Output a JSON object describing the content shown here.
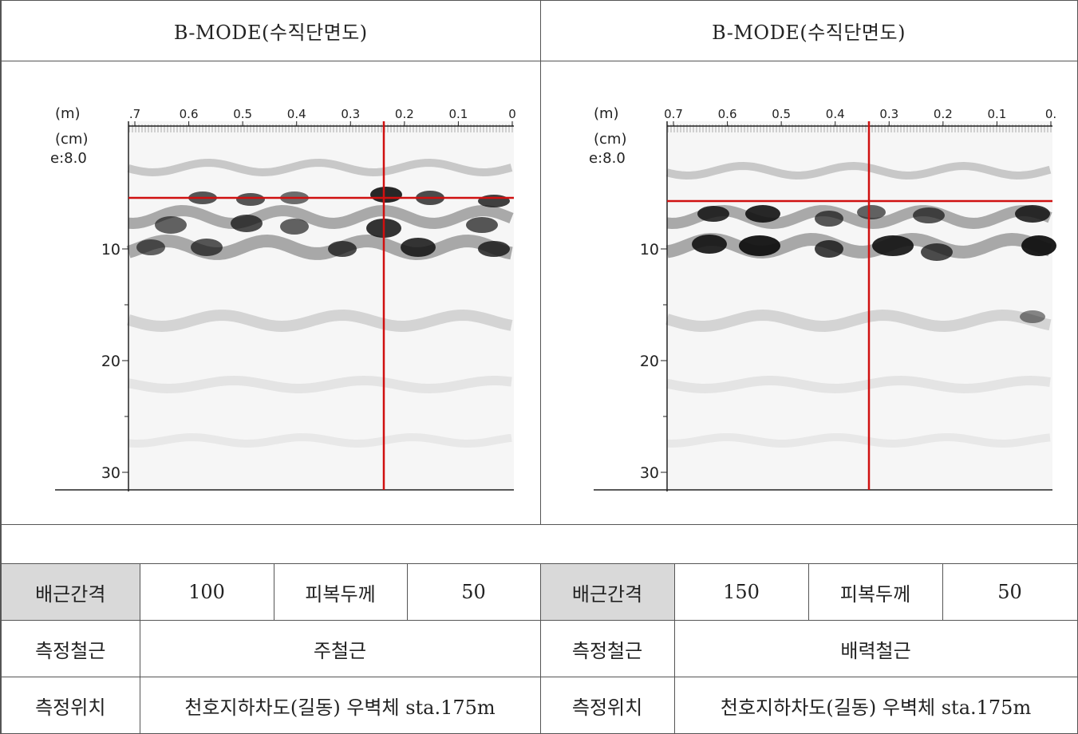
{
  "panels": [
    {
      "title": "B-MODE(수직단면도)",
      "x_unit": "(m)",
      "y_unit": "(cm)",
      "eps_label": "e:8.0",
      "x_ticks": [
        ".7",
        "0.6",
        "0.5",
        "0.4",
        "0.3",
        "0.2",
        "0.1",
        "0"
      ],
      "y_ticks": [
        "10",
        "20",
        "30"
      ]
    },
    {
      "title": "B-MODE(수직단면도)",
      "x_unit": "(m)",
      "y_unit": "(cm)",
      "eps_label": "e:8.0",
      "x_ticks": [
        "0.7",
        "0.6",
        "0.5",
        "0.4",
        "0.3",
        "0.2",
        "0.1",
        "0."
      ],
      "y_ticks": [
        "10",
        "20",
        "30"
      ]
    }
  ],
  "rows": {
    "spacing": {
      "label_left": "배근간격",
      "value_left": "100",
      "cover_label_left": "피복두께",
      "cover_value_left": "50",
      "label_right": "배근간격",
      "value_right": "150",
      "cover_label_right": "피복두께",
      "cover_value_right": "50"
    },
    "rebar": {
      "label_left": "측정철근",
      "value_left": "주철근",
      "label_right": "측정철근",
      "value_right": "배력철근"
    },
    "location": {
      "label_left": "측정위치",
      "value_left": "천호지하차도(길동) 우벽체 sta.175m",
      "label_right": "측정위치",
      "value_right": "천호지하차도(길동) 우벽체 sta.175m"
    }
  },
  "colors": {
    "crosshair": "#d01010",
    "shade": "#d9d9d9"
  }
}
